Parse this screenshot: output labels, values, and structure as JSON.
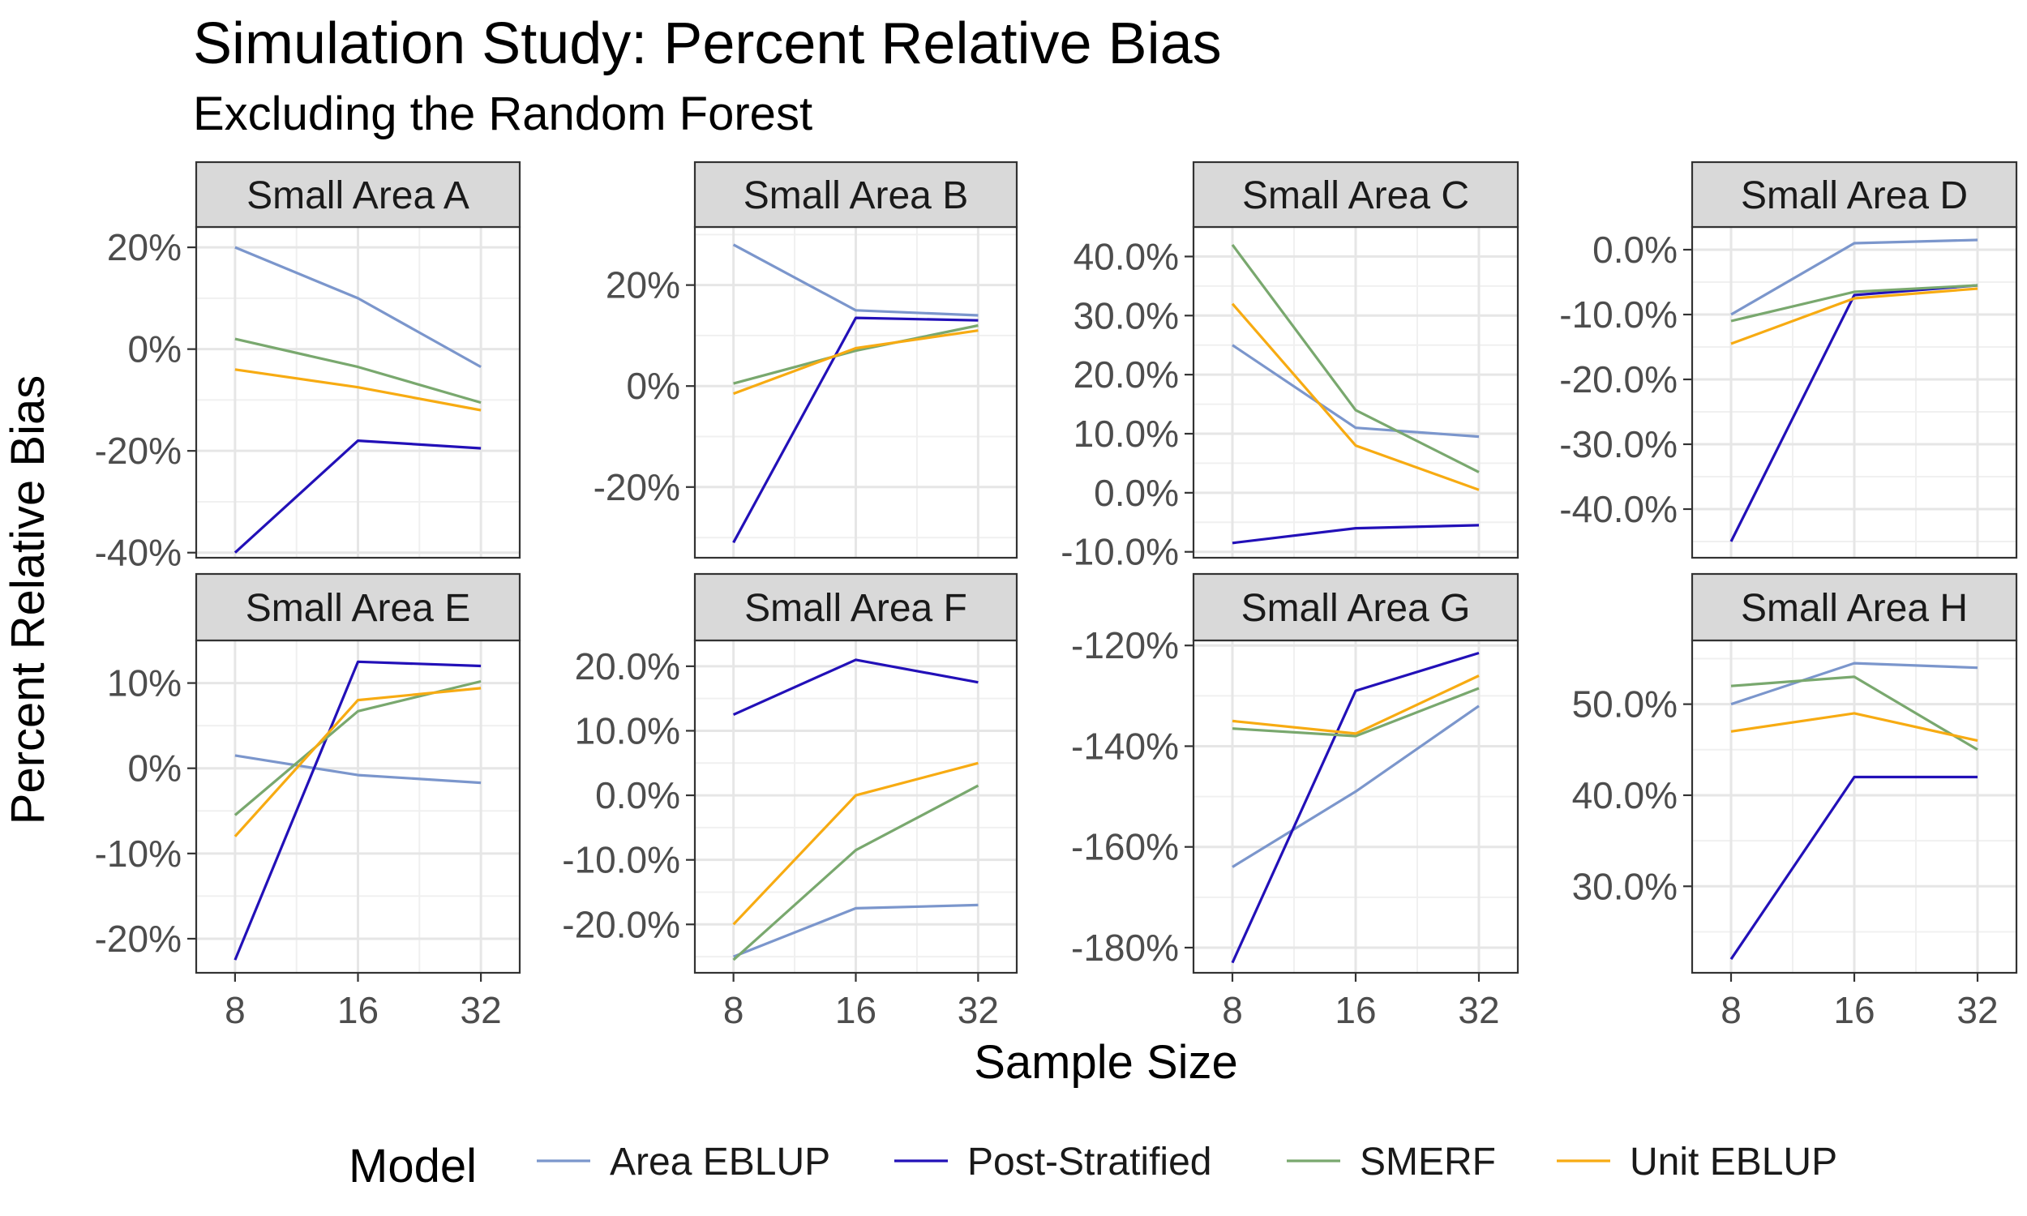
{
  "chart_data": {
    "type": "line",
    "title": "Simulation Study: Percent Relative Bias",
    "subtitle": "Excluding the Random Forest",
    "xlabel": "Sample Size",
    "ylabel": "Percent Relative Bias",
    "x": [
      8,
      16,
      32
    ],
    "x_tick_labels": [
      "8",
      "16",
      "32"
    ],
    "x_scale": "log2",
    "grid": true,
    "legend": {
      "title": "Model",
      "position": "bottom",
      "entries": [
        "Area EBLUP",
        "Post-Stratified",
        "SMERF",
        "Unit EBLUP"
      ]
    },
    "colors": {
      "Area EBLUP": "#7b96cc",
      "Post-Stratified": "#2210b8",
      "SMERF": "#79a86e",
      "Unit EBLUP": "#f7ab12"
    },
    "facets": [
      {
        "label": "Small Area A",
        "ylim": [
          -41,
          24
        ],
        "y_ticks": [
          20,
          0,
          -20,
          -40
        ],
        "y_tick_labels": [
          "20%",
          "0%",
          "-20%",
          "-40%"
        ],
        "series": [
          {
            "name": "Area EBLUP",
            "values": [
              20,
              10,
              -3.5
            ]
          },
          {
            "name": "Post-Stratified",
            "values": [
              -40,
              -18,
              -19.5
            ]
          },
          {
            "name": "SMERF",
            "values": [
              2,
              -3.5,
              -10.5
            ]
          },
          {
            "name": "Unit EBLUP",
            "values": [
              -4,
              -7.5,
              -12
            ]
          }
        ]
      },
      {
        "label": "Small Area B",
        "ylim": [
          -34,
          31.5
        ],
        "y_ticks": [
          20,
          0,
          -20
        ],
        "y_tick_labels": [
          "20%",
          "0%",
          "-20%"
        ],
        "series": [
          {
            "name": "Area EBLUP",
            "values": [
              28,
              15,
              14
            ]
          },
          {
            "name": "Post-Stratified",
            "values": [
              -31,
              13.5,
              13
            ]
          },
          {
            "name": "SMERF",
            "values": [
              0.5,
              7,
              12
            ]
          },
          {
            "name": "Unit EBLUP",
            "values": [
              -1.5,
              7.5,
              11
            ]
          }
        ]
      },
      {
        "label": "Small Area C",
        "ylim": [
          -11,
          45
        ],
        "y_ticks": [
          40,
          30,
          20,
          10,
          0,
          -10
        ],
        "y_tick_labels": [
          "40.0%",
          "30.0%",
          "20.0%",
          "10.0%",
          "0.0%",
          "-10.0%"
        ],
        "series": [
          {
            "name": "Area EBLUP",
            "values": [
              25,
              11,
              9.5
            ]
          },
          {
            "name": "Post-Stratified",
            "values": [
              -8.5,
              -6,
              -5.5
            ]
          },
          {
            "name": "SMERF",
            "values": [
              42,
              14,
              3.5
            ]
          },
          {
            "name": "Unit EBLUP",
            "values": [
              32,
              8,
              0.5
            ]
          }
        ]
      },
      {
        "label": "Small Area D",
        "ylim": [
          -47.5,
          3.5
        ],
        "y_ticks": [
          0,
          -10,
          -20,
          -30,
          -40
        ],
        "y_tick_labels": [
          "0.0%",
          "-10.0%",
          "-20.0%",
          "-30.0%",
          "-40.0%"
        ],
        "series": [
          {
            "name": "Area EBLUP",
            "values": [
              -10,
              1,
              1.5
            ]
          },
          {
            "name": "Post-Stratified",
            "values": [
              -45,
              -7,
              -5.5
            ]
          },
          {
            "name": "SMERF",
            "values": [
              -11,
              -6.5,
              -5.5
            ]
          },
          {
            "name": "Unit EBLUP",
            "values": [
              -14.5,
              -7.5,
              -6
            ]
          }
        ]
      },
      {
        "label": "Small Area E",
        "ylim": [
          -24,
          15
        ],
        "y_ticks": [
          10,
          0,
          -10,
          -20
        ],
        "y_tick_labels": [
          "10%",
          "0%",
          "-10%",
          "-20%"
        ],
        "series": [
          {
            "name": "Area EBLUP",
            "values": [
              1.5,
              -0.8,
              -1.7
            ]
          },
          {
            "name": "Post-Stratified",
            "values": [
              -22.5,
              12.5,
              12
            ]
          },
          {
            "name": "SMERF",
            "values": [
              -5.5,
              6.7,
              10.2
            ]
          },
          {
            "name": "Unit EBLUP",
            "values": [
              -8,
              8,
              9.4
            ]
          }
        ]
      },
      {
        "label": "Small Area F",
        "ylim": [
          -27.5,
          24
        ],
        "y_ticks": [
          20,
          10,
          0,
          -10,
          -20
        ],
        "y_tick_labels": [
          "20.0%",
          "10.0%",
          "0.0%",
          "-10.0%",
          "-20.0%"
        ],
        "series": [
          {
            "name": "Area EBLUP",
            "values": [
              -25,
              -17.5,
              -17
            ]
          },
          {
            "name": "Post-Stratified",
            "values": [
              12.5,
              21,
              17.5
            ]
          },
          {
            "name": "SMERF",
            "values": [
              -25.5,
              -8.5,
              1.5
            ]
          },
          {
            "name": "Unit EBLUP",
            "values": [
              -20,
              0,
              5
            ]
          }
        ]
      },
      {
        "label": "Small Area G",
        "ylim": [
          -185,
          -119
        ],
        "y_ticks": [
          -120,
          -140,
          -160,
          -180
        ],
        "y_tick_labels": [
          "-120%",
          "-140%",
          "-160%",
          "-180%"
        ],
        "series": [
          {
            "name": "Area EBLUP",
            "values": [
              -164,
              -149,
              -132
            ]
          },
          {
            "name": "Post-Stratified",
            "values": [
              -183,
              -129,
              -121.5
            ]
          },
          {
            "name": "SMERF",
            "values": [
              -136.5,
              -138,
              -128.5
            ]
          },
          {
            "name": "Unit EBLUP",
            "values": [
              -135,
              -137.5,
              -126
            ]
          }
        ]
      },
      {
        "label": "Small Area H",
        "ylim": [
          20.5,
          57
        ],
        "y_ticks": [
          50,
          40,
          30
        ],
        "y_tick_labels": [
          "50.0%",
          "40.0%",
          "30.0%"
        ],
        "series": [
          {
            "name": "Area EBLUP",
            "values": [
              50,
              54.5,
              54
            ]
          },
          {
            "name": "Post-Stratified",
            "values": [
              22,
              42,
              42
            ]
          },
          {
            "name": "SMERF",
            "values": [
              52,
              53,
              45
            ]
          },
          {
            "name": "Unit EBLUP",
            "values": [
              47,
              49,
              46
            ]
          }
        ]
      }
    ]
  }
}
